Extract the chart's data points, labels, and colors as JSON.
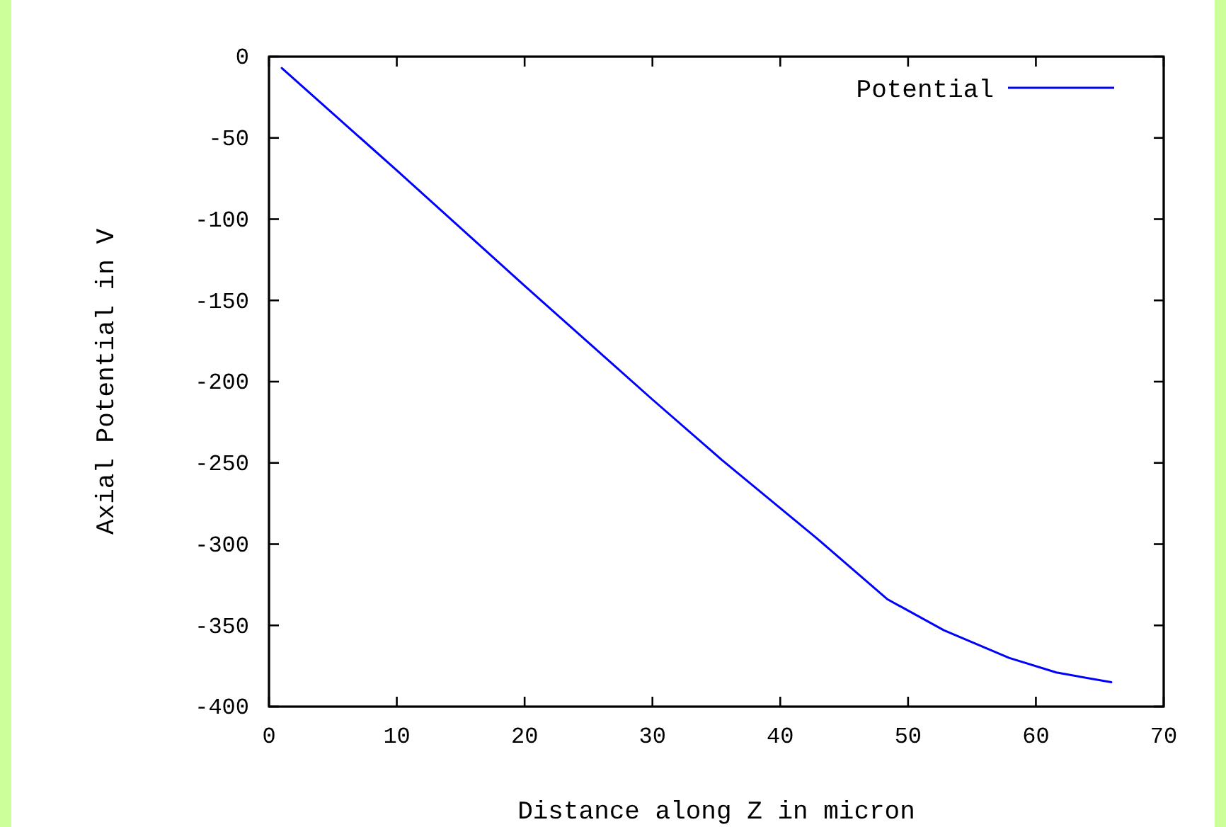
{
  "chart_data": {
    "type": "line",
    "xlabel": "Distance along Z in micron",
    "ylabel": "Axial Potential in V",
    "xlim": [
      0,
      70
    ],
    "xticks": [
      0,
      10,
      20,
      30,
      40,
      50,
      60,
      70
    ],
    "ylim": [
      -400,
      0
    ],
    "yticks": [
      -400,
      -350,
      -300,
      -250,
      -200,
      -150,
      -100,
      -50,
      0
    ],
    "grid": false,
    "legend": "top right",
    "series": [
      {
        "name": "Potential",
        "color": "#0000ff",
        "x": [
          1,
          10,
          20,
          30,
          35.4,
          42.8,
          48.4,
          52.8,
          57.9,
          61.6,
          65.9
        ],
        "values": [
          -7,
          -70,
          -141,
          -211,
          -248,
          -296,
          -334,
          -353,
          -370,
          -379,
          -385
        ]
      }
    ]
  }
}
